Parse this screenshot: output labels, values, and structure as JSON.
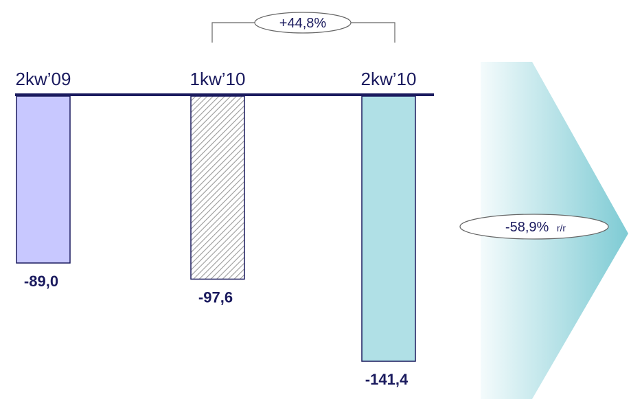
{
  "chart_data": {
    "type": "bar",
    "categories": [
      "2kw'09",
      "1kw'10",
      "2kw'10"
    ],
    "category_labels": [
      "2kw’09",
      "1kw’10",
      "2kw’10"
    ],
    "values": [
      -89.0,
      -97.6,
      -141.4
    ],
    "value_labels": [
      "-89,0",
      "-97,6",
      "-141,4"
    ],
    "ylim": [
      -160,
      0
    ],
    "bar_colors": [
      "#c8c8ff",
      "hatched",
      "#b0e0e6"
    ],
    "annotations": {
      "qoq_change": "+44,8%",
      "yoy_change": "-58,9%",
      "yoy_suffix": "r/r"
    }
  },
  "colors": {
    "text": "#1a1a5e",
    "bar_outline": "#1a1a5e",
    "arrow_gradient_start": "#f4fbfc",
    "arrow_gradient_end": "#7ecbd4"
  }
}
